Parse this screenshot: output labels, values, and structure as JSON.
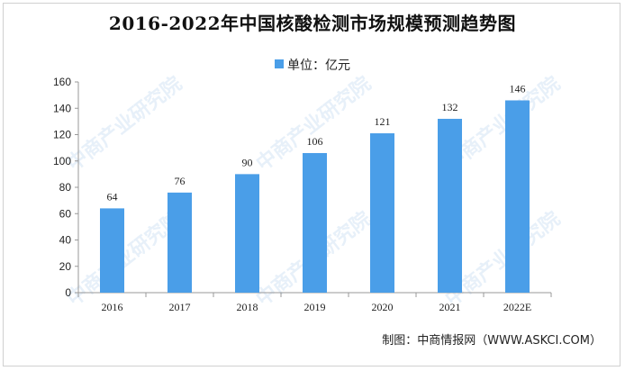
{
  "title": "2016-2022年中国核酸检测市场规模预测趋势图",
  "legend": {
    "label": "单位：亿元",
    "color": "#4a9ee8"
  },
  "source": "制图：中商情报网（WWW.ASKCI.COM）",
  "watermark": "中商产业研究院",
  "chart_data": {
    "type": "bar",
    "categories": [
      "2016",
      "2017",
      "2018",
      "2019",
      "2020",
      "2021",
      "2022E"
    ],
    "series": [
      {
        "values": [
          64,
          76,
          90,
          106,
          121,
          132,
          146
        ],
        "color": "#4a9ee8"
      }
    ],
    "title": "2016-2022年中国核酸检测市场规模预测趋势图",
    "xlabel": "",
    "ylabel": "",
    "ylim": [
      0,
      160
    ],
    "yticks": [
      0,
      20,
      40,
      60,
      80,
      100,
      120,
      140,
      160
    ],
    "grid": false,
    "data_labels": true,
    "legend_position": "top-center"
  }
}
